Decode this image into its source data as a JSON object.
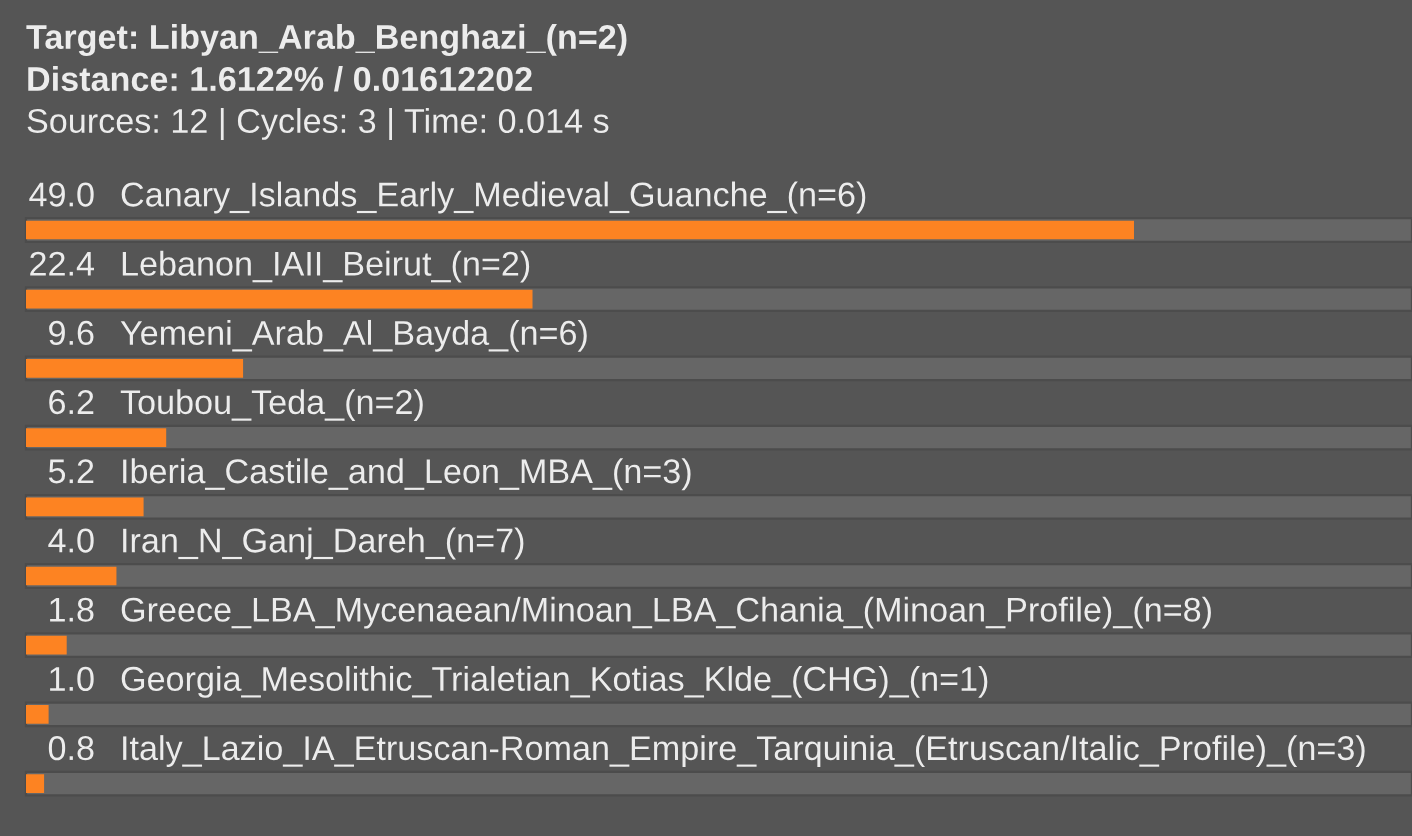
{
  "chart_data": {
    "type": "bar",
    "orientation": "horizontal",
    "title": "Target: Libyan_Arab_Benghazi_(n=2)",
    "subtitle": "Distance: 1.6122% / 0.01612202",
    "annotations": [
      "Sources: 12 | Cycles: 3 | Time: 0.014 s"
    ],
    "categories": [
      "Canary_Islands_Early_Medieval_Guanche_(n=6)",
      "Lebanon_IAII_Beirut_(n=2)",
      "Yemeni_Arab_Al_Bayda_(n=6)",
      "Toubou_Teda_(n=2)",
      "Iberia_Castile_and_Leon_MBA_(n=3)",
      "Iran_N_Ganj_Dareh_(n=7)",
      "Greece_LBA_Mycenaean/Minoan_LBA_Chania_(Minoan_Profile)_(n=8)",
      "Georgia_Mesolithic_Trialetian_Kotias_Klde_(CHG)_(n=1)",
      "Italy_Lazio_IA_Etruscan-Roman_Empire_Tarquinia_(Etruscan/Italic_Profile)_(n=3)"
    ],
    "values": [
      49.0,
      22.4,
      9.6,
      6.2,
      5.2,
      4.0,
      1.8,
      1.0,
      0.8
    ],
    "value_labels": [
      "49.0",
      "22.4",
      "9.6",
      "6.2",
      "5.2",
      "4.0",
      "1.8",
      "1.0",
      "0.8"
    ],
    "color": "#fd8322",
    "tick_labels": "y"
  }
}
